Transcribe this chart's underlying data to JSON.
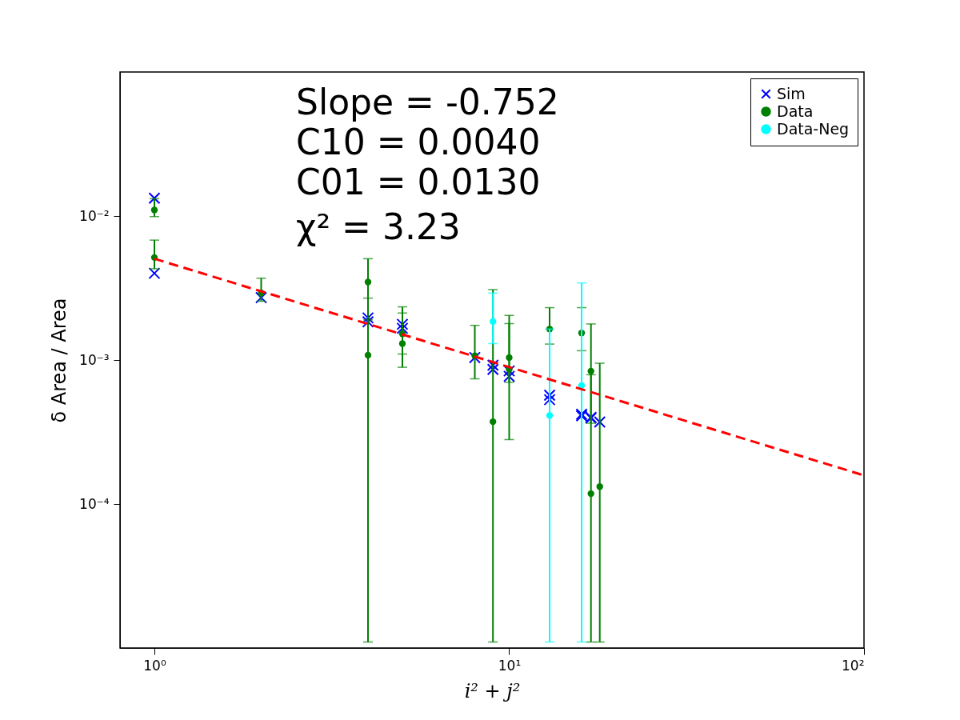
{
  "chart_data": {
    "type": "scatter",
    "xlabel": "i² + j²",
    "ylabel": "δ Area / Area",
    "log": "xy",
    "grid": false,
    "legend": "top right",
    "xlim": [
      0.8,
      100
    ],
    "ylim": [
      1e-05,
      0.1
    ],
    "xticks": [
      {
        "value": 1,
        "label": "10⁰"
      },
      {
        "value": 10,
        "label": "10¹"
      },
      {
        "value": 100,
        "label": "10²"
      }
    ],
    "yticks": [
      {
        "value": 0.0001,
        "label": "10⁻⁴"
      },
      {
        "value": 0.001,
        "label": "10⁻³"
      },
      {
        "value": 0.01,
        "label": "10⁻²"
      }
    ],
    "annotations": [
      "Slope = -0.752",
      "C10 = 0.0040",
      "C01 = 0.0130",
      "χ² = 3.23"
    ],
    "series": [
      {
        "name": "Sim",
        "marker": "cross",
        "color": "#0000ff",
        "x": [
          1,
          1,
          2,
          4,
          4,
          5,
          5,
          8,
          9,
          9,
          10,
          10,
          13,
          13,
          16,
          16,
          17,
          17,
          18
        ],
        "values": [
          0.0133,
          0.004,
          0.00271,
          0.00196,
          0.00184,
          0.00177,
          0.00166,
          0.00104,
          0.00092,
          0.00086,
          0.00084,
          0.00077,
          0.00057,
          0.00053,
          0.00042,
          0.00041,
          0.0004,
          0.000395,
          0.000371
        ]
      },
      {
        "name": "Data",
        "marker": "circle",
        "color": "#008000",
        "x": [
          1,
          1,
          2,
          4,
          4,
          5,
          5,
          8,
          9,
          10,
          10,
          13,
          16,
          17,
          17,
          18
        ],
        "values": [
          0.011,
          0.00515,
          0.00292,
          0.00348,
          0.00108,
          0.00152,
          0.0013,
          0.00107,
          0.000373,
          0.00104,
          0.00086,
          0.00164,
          0.00154,
          0.000836,
          0.000118,
          0.000132
        ],
        "errors": [
          [
            0.0099,
            0.0132
          ],
          [
            0.0043,
            0.0068
          ],
          [
            0.00256,
            0.0037
          ],
          [
            0.0019,
            0.00505
          ],
          [
            1.1e-05,
            0.00269
          ],
          [
            0.0011,
            0.00234
          ],
          [
            0.00089,
            0.00212
          ],
          [
            0.00074,
            0.00174
          ],
          [
            1.1e-05,
            0.00308
          ],
          [
            0.00028,
            0.00204
          ],
          [
            0.0007,
            0.00179
          ],
          [
            0.00129,
            0.00231
          ],
          [
            0.00116,
            0.00231
          ],
          [
            0.000364,
            0.00178
          ],
          [
            1.1e-05,
            0.00079
          ],
          [
            1.1e-05,
            0.00095
          ]
        ]
      },
      {
        "name": "Data-Neg",
        "marker": "circle",
        "color": "#00ffff",
        "x": [
          9,
          13,
          16
        ],
        "values": [
          0.00185,
          0.000412,
          0.000665
        ],
        "errors": [
          [
            0.0013,
            0.00292
          ],
          [
            1.1e-05,
            0.00164
          ],
          [
            1.1e-05,
            0.00343
          ]
        ]
      },
      {
        "type": "line",
        "line_style": "dashed",
        "color": "#ff0000",
        "x": [
          1,
          100
        ],
        "values": [
          0.00505,
          0.000158
        ]
      }
    ]
  }
}
